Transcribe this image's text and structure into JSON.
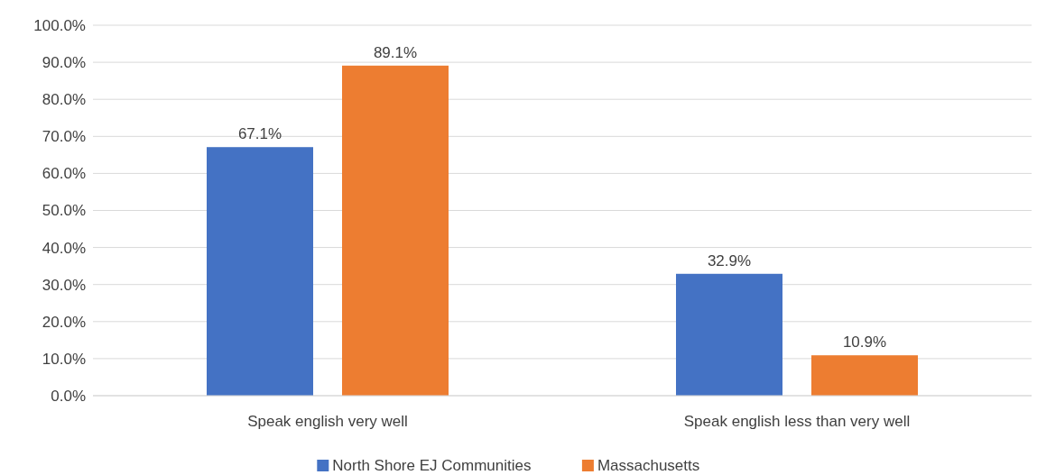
{
  "chart_data": {
    "type": "bar",
    "categories": [
      "Speak english very well",
      "Speak english less than very well"
    ],
    "series": [
      {
        "name": "North Shore EJ Communities",
        "color": "#4472c4",
        "values": [
          67.1,
          32.9
        ],
        "value_labels": [
          "67.1%",
          "32.9%"
        ]
      },
      {
        "name": "Massachusetts",
        "color": "#ed7d31",
        "values": [
          89.1,
          10.9
        ],
        "value_labels": [
          "89.1%",
          "10.9%"
        ]
      }
    ],
    "ylim": [
      0,
      100
    ],
    "yticks": [
      {
        "value": 0,
        "label": "0.0%"
      },
      {
        "value": 10,
        "label": "10.0%"
      },
      {
        "value": 20,
        "label": "20.0%"
      },
      {
        "value": 30,
        "label": "30.0%"
      },
      {
        "value": 40,
        "label": "40.0%"
      },
      {
        "value": 50,
        "label": "50.0%"
      },
      {
        "value": 60,
        "label": "60.0%"
      },
      {
        "value": 70,
        "label": "70.0%"
      },
      {
        "value": 80,
        "label": "80.0%"
      },
      {
        "value": 90,
        "label": "90.0%"
      },
      {
        "value": 100,
        "label": "100.0%"
      }
    ],
    "grid": "y",
    "legend": "bottom"
  }
}
